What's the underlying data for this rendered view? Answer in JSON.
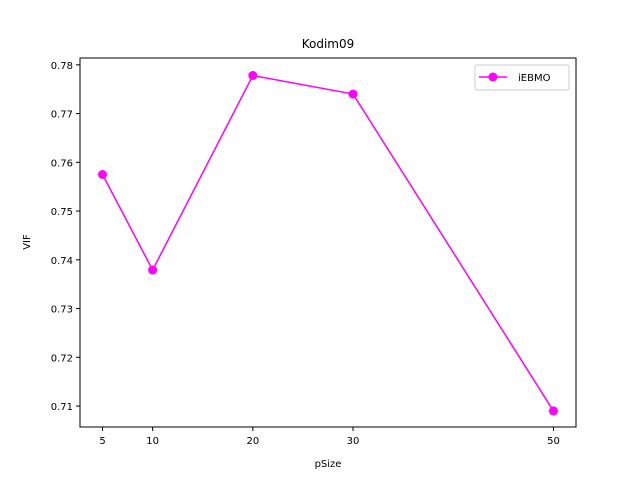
{
  "chart_data": {
    "type": "line",
    "title": "Kodim09",
    "xlabel": "pSize",
    "ylabel": "VIF",
    "x": [
      5,
      10,
      20,
      30,
      50
    ],
    "xticks": [
      "5",
      "10",
      "20",
      "30",
      "50"
    ],
    "xlim": [
      2.75,
      52.25
    ],
    "ylim": [
      0.7057,
      0.7814
    ],
    "yticks": [
      "0.71",
      "0.72",
      "0.73",
      "0.74",
      "0.75",
      "0.76",
      "0.77",
      "0.78"
    ],
    "grid": false,
    "legend_position": "top-right",
    "series": [
      {
        "name": "iEBMO",
        "color": "#ff00ff",
        "marker": "circle",
        "values": [
          0.7575,
          0.7379,
          0.7778,
          0.774,
          0.709
        ]
      }
    ]
  }
}
